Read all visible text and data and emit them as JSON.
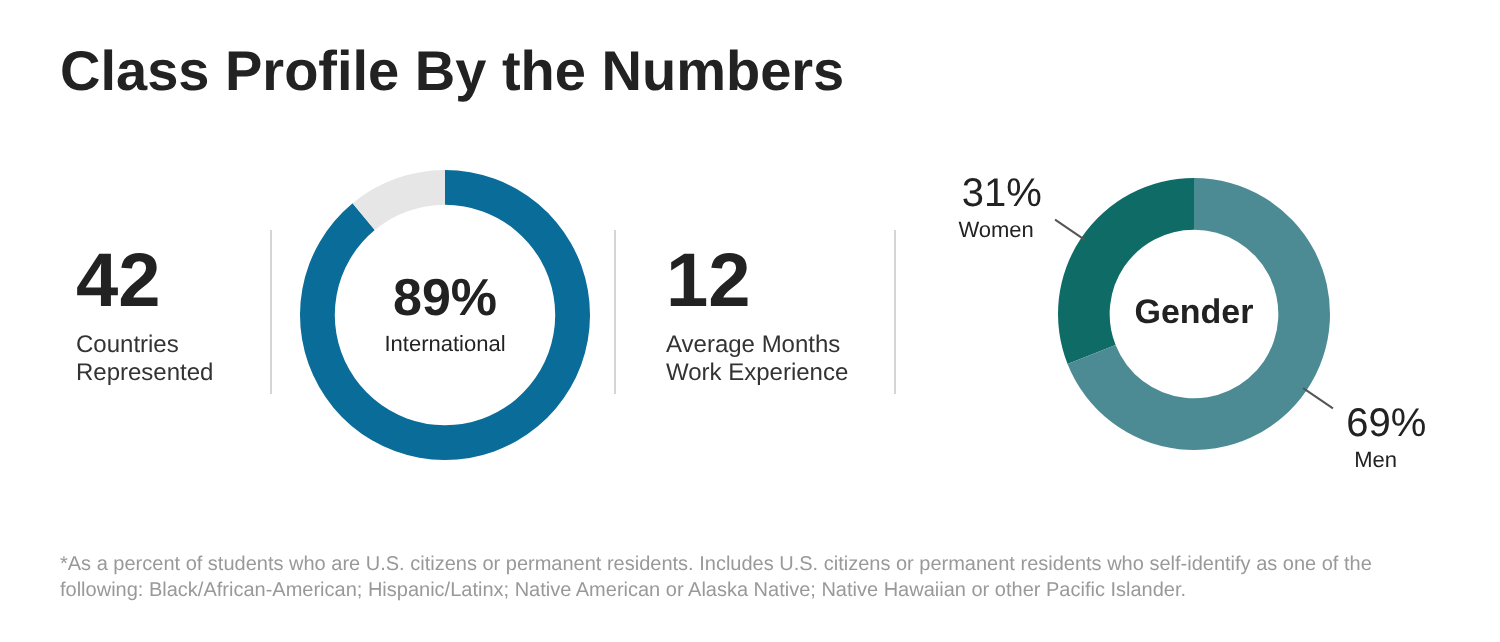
{
  "chart_data": [
    {
      "type": "other",
      "title": "Class Profile By the Numbers",
      "annotations": [
        "42",
        "Countries Represented"
      ]
    },
    {
      "type": "donut",
      "categories": [
        "International",
        null
      ],
      "values": [
        89,
        11
      ],
      "colors": [
        "#0a6c98",
        "#e6e6e6"
      ],
      "value_labels": [
        "89%",
        null
      ],
      "annotations": [
        "*As a percent of students who are U.S. citizens or permanent residents. Includes U.S. citizens or permanent residents who self-identify as one of the following: Black/African-American; Hispanic/Latinx; Native American or Alaska Native; Native Hawaiian or other Pacific Islander."
      ]
    },
    {
      "type": "other",
      "annotations": [
        "12",
        "Average Months Work Experience"
      ]
    },
    {
      "type": "donut",
      "title": "Gender",
      "categories": [
        "Women",
        "Men"
      ],
      "values": [
        31,
        69
      ],
      "colors": [
        "#0e6b66",
        "#4d8b94"
      ],
      "value_labels": [
        "31%",
        "69%"
      ]
    }
  ]
}
